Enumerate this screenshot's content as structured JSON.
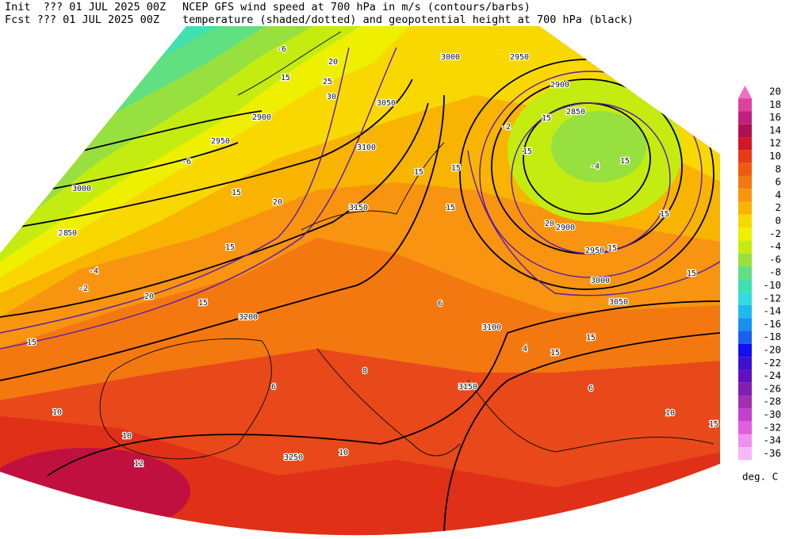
{
  "header": {
    "init_line": "Init  ??? 01 JUL 2025 00Z",
    "fcst_line": "Fcst ??? 01 JUL 2025 00Z",
    "title_line1": "NCEP GFS wind speed at 700 hPa in m/s (contours/barbs)",
    "title_line2": "temperature (shaded/dotted) and geopotential height at 700 hPa (black)"
  },
  "colorbar": {
    "ticks": [
      20,
      18,
      16,
      14,
      12,
      10,
      8,
      6,
      4,
      2,
      0,
      -2,
      -4,
      -6,
      -8,
      -10,
      -12,
      -14,
      -16,
      -18,
      -20,
      -22,
      -24,
      -26,
      -28,
      -30,
      -32,
      -34,
      -36
    ],
    "colors": [
      "#f070c0",
      "#e040a0",
      "#c02080",
      "#b01050",
      "#d01828",
      "#e83a14",
      "#f05a10",
      "#f47810",
      "#f89410",
      "#f8b400",
      "#f8d800",
      "#eef000",
      "#c4ec10",
      "#98e040",
      "#60e080",
      "#40e0b0",
      "#30dce0",
      "#20b8f0",
      "#1890f0",
      "#1860f0",
      "#1010f0",
      "#4010d0",
      "#6010c0",
      "#8020b0",
      "#a030b0",
      "#c040d0",
      "#e060e0",
      "#f090f0",
      "#f8b8f8"
    ],
    "unit": "deg. C"
  },
  "map_labels": [
    "3000",
    "3050",
    "2950",
    "2900",
    "3000",
    "2950",
    "2900",
    "2850",
    "3050",
    "3100",
    "3150",
    "3200",
    "3100",
    "3150",
    "3250",
    "2900",
    "2950",
    "3000",
    "3050",
    "15",
    "20",
    "15",
    "15",
    "20",
    "15",
    "15",
    "20",
    "25",
    "30",
    "15",
    "15",
    "15",
    "20",
    "15",
    "15",
    "15",
    "15",
    "15",
    "15",
    "15",
    "15",
    "15",
    "-6",
    "-6",
    "-8",
    "-4",
    "-2",
    "-2",
    "-4",
    "4",
    "6",
    "6",
    "8",
    "6",
    "10",
    "10",
    "12",
    "10",
    "10"
  ]
}
